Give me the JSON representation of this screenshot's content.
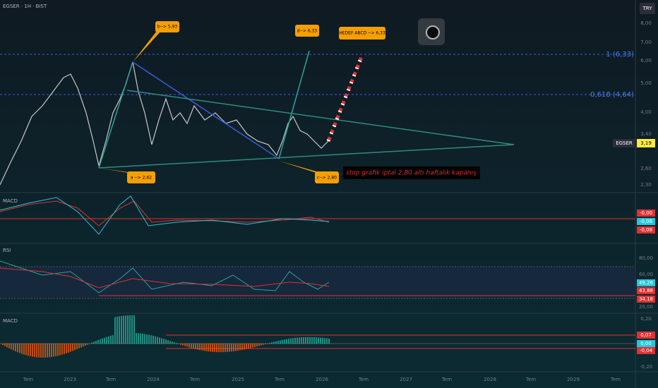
{
  "header": {
    "title": "EGSER · 1H · BIST",
    "currency": "TRY"
  },
  "price_axis": {
    "ticks": [
      "8,00",
      "7,00",
      "6,00",
      "5,00",
      "4,00",
      "3,40",
      "2,60",
      "2,30"
    ],
    "symbol": "EGSER",
    "last": "3,19"
  },
  "levels": [
    "1 (6,33)",
    "0,618 (4,64)"
  ],
  "annotations": {
    "a": "a --> 2,62",
    "b": "b--> 5,93",
    "c": "c--> 2,80",
    "d": "d--> 6,33",
    "target": "HEDEF ABCD --> 6,33",
    "stop": "stop grafik iptal 2,80 altı haftalık kapanış"
  },
  "macd_pane": {
    "label": "MACD",
    "values": [
      "-0,00",
      "-0,08",
      "-0,08"
    ]
  },
  "rsi_pane": {
    "label": "RSI",
    "ticks": [
      "80,00",
      "60,00",
      "20,00"
    ],
    "values": [
      "49,26",
      "43,88",
      "34,18"
    ]
  },
  "macd_hist_pane": {
    "label": "MACD",
    "ticks": [
      "0,20",
      "-0,20"
    ],
    "values": [
      "0,07",
      "0,00",
      "-0,04"
    ]
  },
  "time_axis": [
    "Tem",
    "2023",
    "Tem",
    "2024",
    "Tem",
    "2025",
    "Tem",
    "2026",
    "Tem",
    "2027",
    "Tem",
    "2028",
    "Tem",
    "2029",
    "Tem"
  ]
}
